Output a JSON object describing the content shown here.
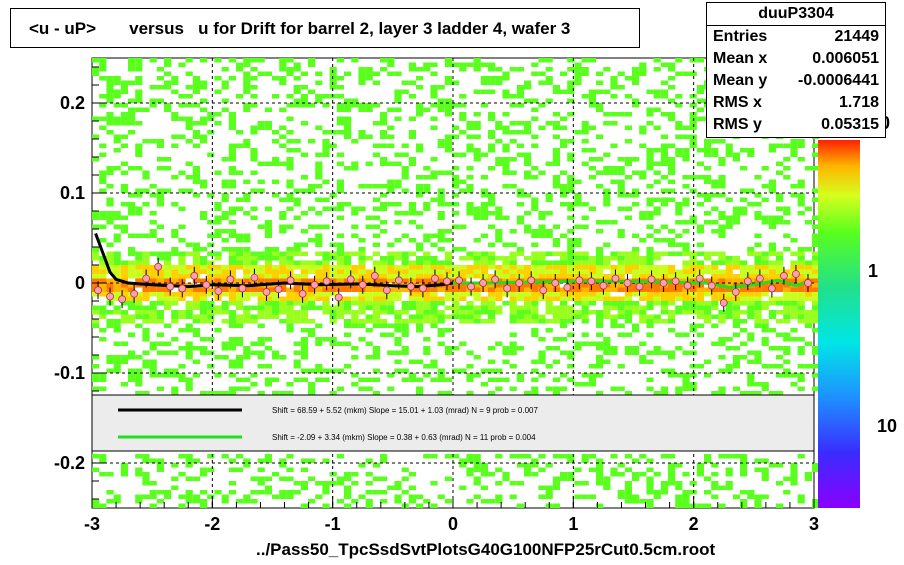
{
  "title": "<u - uP>       versus   u for Drift for barrel 2, layer 3 ladder 4, wafer 3",
  "stats": {
    "name": "duuP3304",
    "rows": [
      {
        "key": "Entries",
        "value": "21449"
      },
      {
        "key": "Mean x",
        "value": "0.006051"
      },
      {
        "key": "Mean y",
        "value": "-0.0006441"
      },
      {
        "key": "RMS x",
        "value": "1.718"
      },
      {
        "key": "RMS y",
        "value": "0.05315"
      }
    ]
  },
  "footer": "../Pass50_TpcSsdSvtPlotsG40G100NFP25rCut0.5cm.root",
  "legend": {
    "fit1": "Shift =    68.59 + 5.52 (mkm) Slope =    15.01 + 1.03 (mrad)  N = 9 prob = 0.007",
    "fit2": "Shift =    -2.09 + 3.34 (mkm) Slope =     0.38 + 0.63 (mrad)  N = 11 prob = 0.004"
  },
  "colors": {
    "fit1": "#000000",
    "fit2": "#22dd22"
  },
  "chart_data": {
    "type": "heatmap",
    "xlim": [
      -3,
      3
    ],
    "ylim": [
      -0.25,
      0.25
    ],
    "xticks": [
      "-3",
      "-2",
      "-1",
      "0",
      "1",
      "2",
      "3"
    ],
    "yticks": [
      "-0.2",
      "-0.1",
      "0",
      "0.1",
      "0.2"
    ],
    "grid": true,
    "colorbar_labels": [
      "10",
      "1",
      "10"
    ],
    "profile": {
      "x": [
        -2.95,
        -2.85,
        -2.75,
        -2.65,
        -2.55,
        -2.45,
        -2.35,
        -2.25,
        -2.15,
        -2.05,
        -1.95,
        -1.85,
        -1.75,
        -1.65,
        -1.55,
        -1.45,
        -1.35,
        -1.25,
        -1.15,
        -1.05,
        -0.95,
        -0.85,
        -0.75,
        -0.65,
        -0.55,
        -0.45,
        -0.35,
        -0.25,
        -0.15,
        -0.05,
        0.05,
        0.15,
        0.25,
        0.35,
        0.45,
        0.55,
        0.65,
        0.75,
        0.85,
        0.95,
        1.05,
        1.15,
        1.25,
        1.35,
        1.45,
        1.55,
        1.65,
        1.75,
        1.85,
        1.95,
        2.05,
        2.15,
        2.25,
        2.35,
        2.45,
        2.55,
        2.65,
        2.75,
        2.85,
        2.95
      ],
      "y": [
        -0.008,
        -0.015,
        -0.018,
        -0.012,
        0.005,
        0.018,
        -0.004,
        -0.006,
        0.008,
        -0.002,
        -0.009,
        0.004,
        -0.006,
        0.006,
        -0.01,
        -0.007,
        0.003,
        -0.012,
        -0.002,
        0.002,
        -0.016,
        0.004,
        -0.002,
        0.008,
        -0.008,
        0.003,
        -0.004,
        -0.006,
        0.005,
        0.002,
        0.003,
        -0.004,
        0.0,
        0.004,
        -0.006,
        0.0,
        0.003,
        -0.008,
        0.0,
        -0.005,
        0.003,
        0.002,
        -0.003,
        0.005,
        0.0,
        -0.004,
        0.004,
        0.0,
        0.002,
        -0.003,
        0.005,
        -0.003,
        -0.022,
        -0.01,
        0.002,
        0.005,
        -0.006,
        0.008,
        0.01,
        0.0
      ]
    },
    "fit1_curve": {
      "x": [
        -2.97,
        -2.9,
        -2.85,
        -2.8,
        -2.7,
        -2.5,
        -2.2,
        -2.0,
        -1.7,
        -1.4,
        -1.1,
        -0.8,
        -0.5,
        -0.3,
        -0.1,
        0.0
      ],
      "y": [
        0.055,
        0.03,
        0.012,
        0.004,
        0.0,
        -0.002,
        -0.004,
        -0.002,
        -0.003,
        0.0,
        -0.002,
        -0.001,
        -0.003,
        -0.004,
        -0.002,
        0.0
      ]
    },
    "fit2_curve": {
      "x": [
        0.0,
        0.3,
        0.6,
        1.0,
        1.4,
        1.8,
        2.1,
        2.3,
        2.5,
        2.7,
        2.85,
        2.95
      ],
      "y": [
        0.0,
        0.0,
        0.001,
        0.002,
        0.002,
        0.001,
        0.0,
        -0.005,
        -0.002,
        0.003,
        -0.003,
        0.002
      ]
    }
  }
}
